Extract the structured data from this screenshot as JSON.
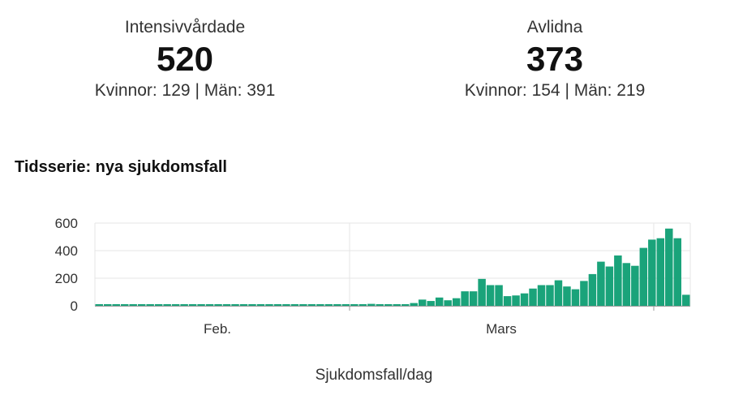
{
  "stats": {
    "icu": {
      "label": "Intensivvårdade",
      "value": "520",
      "split": "Kvinnor: 129 | Män: 391"
    },
    "deaths": {
      "label": "Avlidna",
      "value": "373",
      "split": "Kvinnor: 154 | Män: 219"
    }
  },
  "section_title": "Tidsserie: nya sjukdomsfall",
  "colors": {
    "bar": "#1aa37a",
    "grid": "#e6e6e6",
    "axis": "#999999"
  },
  "chart_data": {
    "type": "bar",
    "title": "",
    "xlabel": "Sjukdomsfall/dag",
    "ylabel": "",
    "ylim": [
      0,
      600
    ],
    "yticks": [
      0,
      200,
      400,
      600
    ],
    "x_group_labels": [
      "Feb.",
      "Mars"
    ],
    "grid": true,
    "values": [
      1,
      0,
      0,
      0,
      0,
      0,
      0,
      0,
      0,
      0,
      0,
      0,
      0,
      0,
      0,
      0,
      0,
      0,
      0,
      0,
      0,
      0,
      0,
      0,
      0,
      0,
      0,
      0,
      0,
      0,
      0,
      0,
      14,
      8,
      5,
      5,
      0,
      20,
      45,
      35,
      60,
      40,
      55,
      105,
      105,
      195,
      150,
      150,
      70,
      75,
      90,
      125,
      150,
      150,
      185,
      140,
      120,
      180,
      230,
      320,
      285,
      365,
      310,
      290,
      420,
      480,
      490,
      560,
      490,
      80
    ]
  }
}
